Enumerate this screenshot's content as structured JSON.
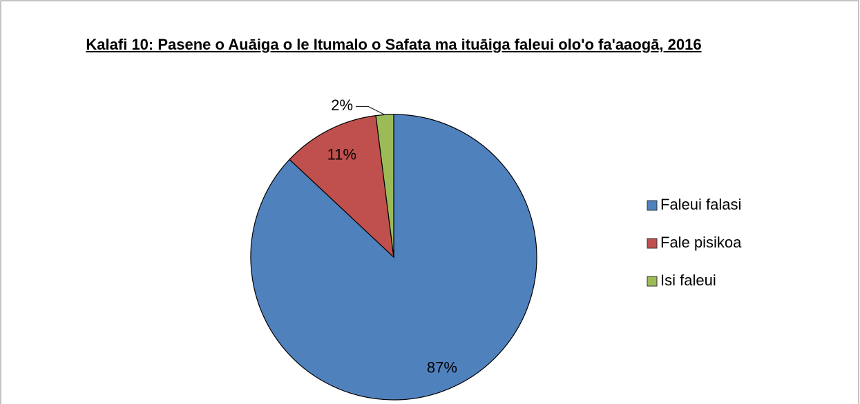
{
  "chart_data": {
    "type": "pie",
    "title": "Kalafi 10: Pasene o Auāiga o le Itumalo o Safata ma ituāiga faleui olo'o fa'aaogā, 2016",
    "categories": [
      "Faleui falasi",
      "Fale pisikoa",
      "Isi faleui"
    ],
    "values": [
      87,
      11,
      2
    ],
    "value_labels": [
      "87%",
      "11%",
      "2%"
    ],
    "colors": [
      "#4f81bd",
      "#c0504d",
      "#9bbb59"
    ],
    "legend": "right"
  }
}
